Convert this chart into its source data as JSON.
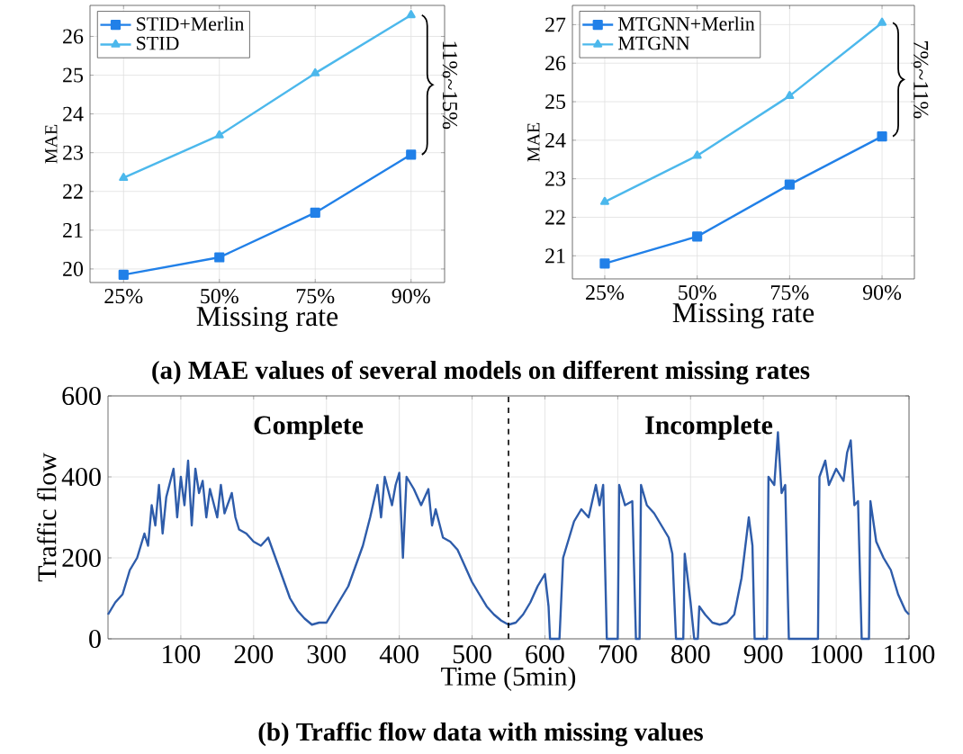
{
  "chart_data": [
    {
      "type": "line",
      "categories": [
        "25%",
        "50%",
        "75%",
        "90%"
      ],
      "xlabel": "Missing rate",
      "ylabel": "MAE",
      "ylim": [
        19.65,
        26.8
      ],
      "yticks": [
        20,
        21,
        22,
        23,
        24,
        25,
        26
      ],
      "grid": true,
      "legend": "top left",
      "series": [
        {
          "name": "STID+Merlin",
          "color": "#2180e8",
          "marker": "square",
          "values": [
            19.85,
            20.3,
            21.45,
            22.95
          ]
        },
        {
          "name": "STID",
          "color": "#4cb8ec",
          "marker": "triangle",
          "values": [
            22.35,
            23.45,
            25.05,
            26.55
          ]
        }
      ],
      "annotations": [
        "11%~15%"
      ],
      "title": "(a) MAE values of several models on different missing rates"
    },
    {
      "type": "line",
      "categories": [
        "25%",
        "50%",
        "75%",
        "90%"
      ],
      "xlabel": "Missing rate",
      "ylabel": "MAE",
      "ylim": [
        20.4,
        27.5
      ],
      "yticks": [
        21,
        22,
        23,
        24,
        25,
        26,
        27
      ],
      "grid": true,
      "legend": "top left",
      "series": [
        {
          "name": "MTGNN+Merlin",
          "color": "#2180e8",
          "marker": "square",
          "values": [
            20.8,
            21.5,
            22.85,
            24.1
          ]
        },
        {
          "name": "MTGNN",
          "color": "#4cb8ec",
          "marker": "triangle",
          "values": [
            22.4,
            23.6,
            25.15,
            27.05
          ]
        }
      ],
      "annotations": [
        "7%~11%"
      ]
    },
    {
      "type": "line",
      "xlabel": "Time (5min)",
      "ylabel": "Traffic flow",
      "xlim": [
        0,
        1100
      ],
      "xticks": [
        100,
        200,
        300,
        400,
        500,
        600,
        700,
        800,
        900,
        1000,
        1100
      ],
      "ylim": [
        0,
        600
      ],
      "yticks": [
        0,
        200,
        400,
        600
      ],
      "grid": true,
      "ref_lines": [
        {
          "axis": "x",
          "value": 550,
          "color": "#000000",
          "line_style": "dashed"
        }
      ],
      "x": [
        0,
        10,
        20,
        30,
        40,
        50,
        55,
        60,
        65,
        70,
        75,
        80,
        90,
        95,
        100,
        105,
        110,
        115,
        120,
        125,
        130,
        135,
        140,
        150,
        155,
        160,
        170,
        175,
        180,
        190,
        200,
        210,
        220,
        230,
        240,
        250,
        260,
        270,
        280,
        290,
        300,
        310,
        320,
        330,
        340,
        350,
        360,
        370,
        375,
        380,
        390,
        395,
        400,
        405,
        410,
        420,
        430,
        440,
        445,
        450,
        460,
        470,
        480,
        490,
        500,
        510,
        520,
        530,
        540,
        550,
        560,
        570,
        580,
        590,
        600,
        605,
        607,
        620,
        625,
        630,
        640,
        650,
        660,
        670,
        675,
        680,
        685,
        700,
        702,
        710,
        720,
        725,
        730,
        732,
        740,
        750,
        760,
        770,
        775,
        780,
        790,
        792,
        800,
        805,
        810,
        812,
        820,
        830,
        840,
        850,
        860,
        870,
        880,
        885,
        888,
        905,
        907,
        915,
        920,
        925,
        930,
        935,
        975,
        977,
        985,
        990,
        1000,
        1010,
        1015,
        1020,
        1025,
        1030,
        1035,
        1045,
        1047,
        1055,
        1065,
        1075,
        1085,
        1095,
        1100
      ],
      "series": [
        {
          "color": "#2e5caa",
          "values": [
            60,
            90,
            110,
            170,
            200,
            260,
            230,
            330,
            280,
            380,
            260,
            350,
            420,
            300,
            400,
            330,
            440,
            280,
            420,
            360,
            390,
            300,
            370,
            300,
            380,
            310,
            360,
            300,
            270,
            260,
            240,
            230,
            250,
            200,
            150,
            100,
            70,
            50,
            35,
            40,
            40,
            70,
            100,
            130,
            180,
            230,
            300,
            380,
            300,
            400,
            330,
            380,
            410,
            200,
            400,
            370,
            330,
            370,
            280,
            320,
            250,
            240,
            220,
            180,
            140,
            110,
            80,
            60,
            45,
            35,
            40,
            60,
            90,
            130,
            160,
            80,
            0,
            0,
            200,
            230,
            290,
            320,
            300,
            380,
            330,
            380,
            0,
            0,
            380,
            330,
            340,
            0,
            0,
            380,
            330,
            310,
            280,
            250,
            210,
            0,
            0,
            210,
            90,
            0,
            0,
            80,
            60,
            40,
            35,
            40,
            60,
            150,
            300,
            230,
            0,
            0,
            400,
            380,
            510,
            360,
            380,
            0,
            0,
            400,
            440,
            380,
            420,
            390,
            460,
            490,
            330,
            340,
            0,
            0,
            340,
            240,
            200,
            170,
            110,
            70,
            60
          ]
        }
      ],
      "annotations": [
        "Complete",
        "Incomplete"
      ],
      "title": "(b) Traffic flow data with missing values"
    }
  ]
}
